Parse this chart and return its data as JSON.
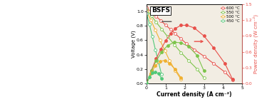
{
  "title": "BSFS",
  "xlabel": "Current density (A cm⁻²)",
  "ylabel_left": "Voltage (V)",
  "ylabel_right": "Power density (W cm⁻²)",
  "xlim": [
    0,
    5
  ],
  "ylim_left": [
    0,
    1.1
  ],
  "ylim_right": [
    0,
    1.5
  ],
  "yticks_left": [
    0.0,
    0.2,
    0.4,
    0.6,
    0.8,
    1.0
  ],
  "yticks_right": [
    0.0,
    0.3,
    0.6,
    0.9,
    1.2,
    1.5
  ],
  "xticks": [
    0,
    1,
    2,
    3,
    4,
    5
  ],
  "temperatures": [
    "600 °C",
    "550 °C",
    "500 °C",
    "450 °C"
  ],
  "colors": [
    "#e8504a",
    "#7cc44a",
    "#f0b030",
    "#50c878"
  ],
  "voltage_600": [
    1.05,
    0.99,
    0.93,
    0.87,
    0.81,
    0.75,
    0.69,
    0.62,
    0.55,
    0.47,
    0.38,
    0.28,
    0.16,
    0.05
  ],
  "current_600": [
    0.0,
    0.25,
    0.5,
    0.75,
    1.0,
    1.25,
    1.5,
    1.8,
    2.1,
    2.5,
    3.0,
    3.5,
    4.1,
    4.5
  ],
  "power_600": [
    0.0,
    0.25,
    0.47,
    0.65,
    0.81,
    0.94,
    1.04,
    1.1,
    1.1,
    1.05,
    0.9,
    0.68,
    0.38,
    0.08
  ],
  "voltage_550": [
    1.02,
    0.94,
    0.85,
    0.75,
    0.65,
    0.54,
    0.43,
    0.32,
    0.2,
    0.08
  ],
  "current_550": [
    0.0,
    0.25,
    0.5,
    0.8,
    1.1,
    1.45,
    1.8,
    2.2,
    2.65,
    3.0
  ],
  "power_550": [
    0.0,
    0.24,
    0.43,
    0.6,
    0.72,
    0.78,
    0.77,
    0.7,
    0.53,
    0.24
  ],
  "voltage_500": [
    1.0,
    0.88,
    0.74,
    0.6,
    0.46,
    0.32,
    0.18,
    0.06
  ],
  "current_500": [
    0.0,
    0.22,
    0.46,
    0.7,
    0.95,
    1.2,
    1.5,
    1.8
  ],
  "power_500": [
    0.0,
    0.19,
    0.34,
    0.42,
    0.44,
    0.38,
    0.27,
    0.11
  ],
  "voltage_450": [
    0.97,
    0.82,
    0.65,
    0.47,
    0.3,
    0.13
  ],
  "current_450": [
    0.0,
    0.15,
    0.3,
    0.46,
    0.62,
    0.78
  ],
  "power_450": [
    0.0,
    0.12,
    0.2,
    0.22,
    0.19,
    0.1
  ],
  "bg_color": "#f2ede3",
  "indicator_line_color": "#555555",
  "indicator_arrow_color": "#e8504a"
}
